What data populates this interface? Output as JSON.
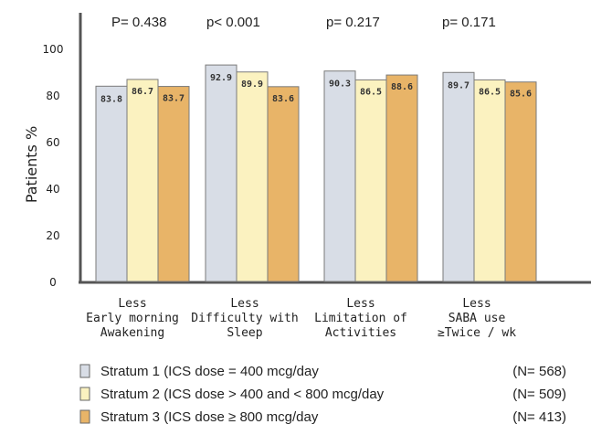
{
  "chart_data": {
    "type": "bar",
    "title": "",
    "ylabel": "Patients %",
    "xlabel": "",
    "ylim": [
      0,
      100
    ],
    "yticks": [
      0,
      20,
      40,
      60,
      80,
      100
    ],
    "grid": false,
    "legend_position": "bottom",
    "categories": [
      [
        "Less",
        "Early morning",
        "Awakening"
      ],
      [
        "Less",
        "Difficulty with",
        "Sleep"
      ],
      [
        "Less",
        "Limitation of",
        "Activities"
      ],
      [
        "Less",
        "SABA use",
        "≥Twice / wk"
      ]
    ],
    "p_values": [
      "P= 0.438",
      "p< 0.001",
      "p= 0.217",
      "p= 0.171"
    ],
    "series": [
      {
        "name": "Stratum 1 (ICS dose = 400 mcg/day",
        "n": "(N= 568)",
        "color": "#d8dde6",
        "values": [
          83.8,
          92.9,
          90.3,
          89.7
        ],
        "labels": [
          "83.8",
          "92.9",
          "90.3",
          "89.7"
        ]
      },
      {
        "name": "Stratum 2 (ICS dose > 400 and < 800 mcg/day",
        "n": "(N= 509)",
        "color": "#fbf2c0",
        "values": [
          86.7,
          89.9,
          86.5,
          86.5
        ],
        "labels": [
          "86.7",
          "89.9",
          "86.5",
          "86.5"
        ]
      },
      {
        "name": "Stratum 3 (ICS dose ≥ 800 mcg/day",
        "n": "(N= 413)",
        "color": "#e8b468",
        "values": [
          83.7,
          83.6,
          88.6,
          85.6
        ],
        "labels": [
          "83.7",
          "83.6",
          "88.6",
          "85.6"
        ]
      }
    ]
  }
}
